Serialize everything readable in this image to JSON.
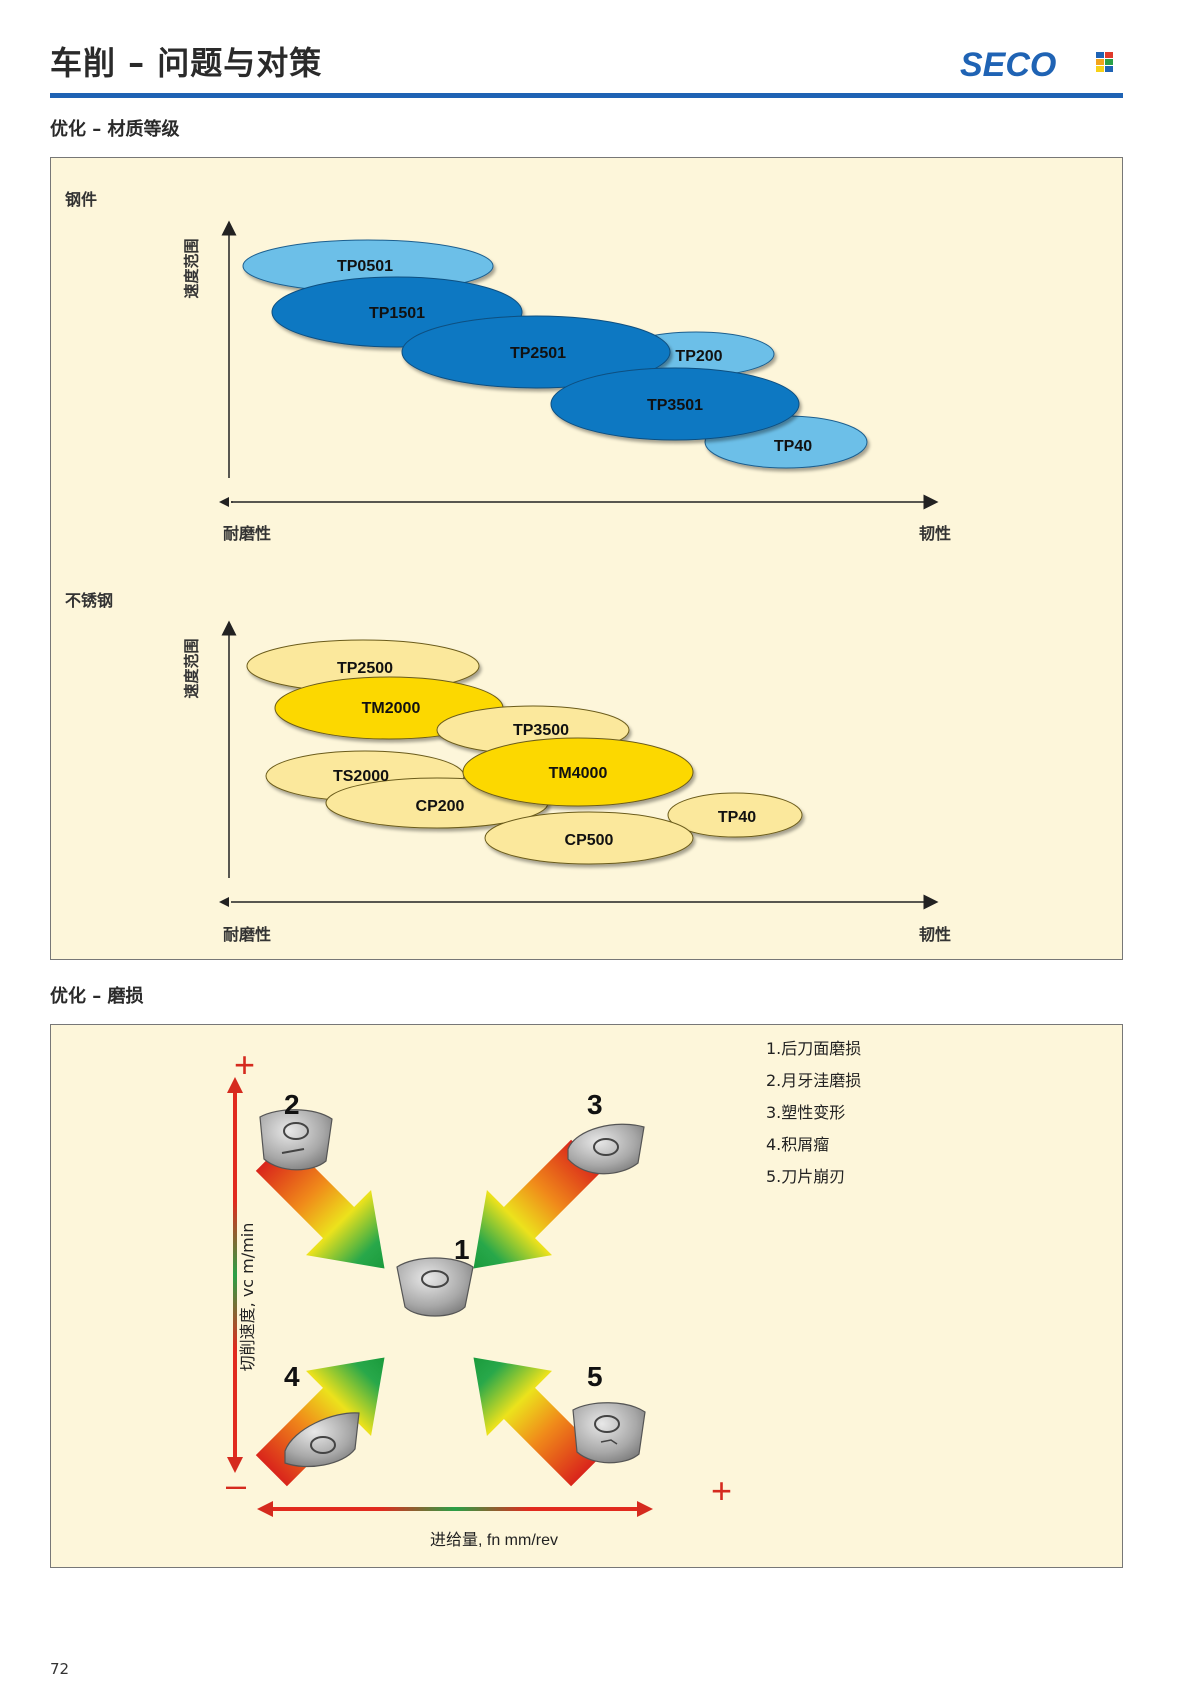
{
  "header": {
    "title": "车削 – 问题与对策",
    "brand": "SECO"
  },
  "section1": {
    "heading": "优化 – 材质等级",
    "steel": {
      "subtitle": "钢件",
      "y_label": "速度范围",
      "x_left": "耐磨性",
      "x_right": "韧性",
      "grades": [
        "TP0501",
        "TP1501",
        "TP2501",
        "TP200",
        "TP3501",
        "TP40"
      ]
    },
    "stainless": {
      "subtitle": "不锈钢",
      "y_label": "速度范围",
      "x_left": "耐磨性",
      "x_right": "韧性",
      "grades": [
        "TP2500",
        "TM2000",
        "TP3500",
        "TS2000",
        "TM4000",
        "CP200",
        "TP40",
        "CP500"
      ]
    }
  },
  "section2": {
    "heading": "优化 – 磨损",
    "y_axis": "切削速度, vc m/min",
    "x_axis": "进给量, fn mm/rev",
    "plus": "+",
    "minus": "–",
    "numbers": [
      "1",
      "2",
      "3",
      "4",
      "5"
    ],
    "legend": [
      "1.后刀面磨损",
      "2.月牙洼磨损",
      "3.塑性变形",
      "4.积屑瘤",
      "5.刀片崩刃"
    ]
  },
  "colors": {
    "accent": "#1f63b4",
    "steel_light": "#6cbfe8",
    "steel_dark": "#0a78c2",
    "stainless_light": "#fbe89c",
    "stainless_dark": "#fcd800",
    "panel_bg": "#fdf6da"
  },
  "footer": {
    "page_number": "72"
  }
}
